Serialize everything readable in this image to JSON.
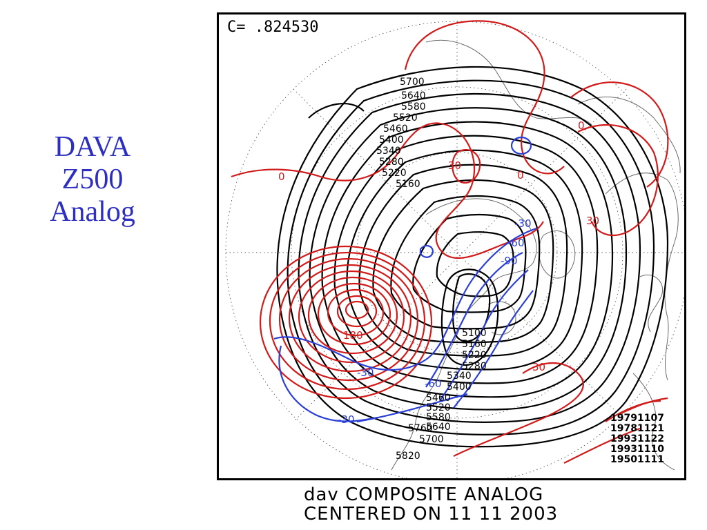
{
  "title": {
    "line1": "DAVA",
    "line2": "Z500",
    "line3": "Analog",
    "color": "#2d2fc0"
  },
  "map": {
    "correlation_label": "C= .824530",
    "height_contour_labels": [
      "5700",
      "5640",
      "5580",
      "5520",
      "5460",
      "5400",
      "5340",
      "5280",
      "5220",
      "5160",
      "5100",
      "5160",
      "5220",
      "5280",
      "5340",
      "5400",
      "5460",
      "5520",
      "5580",
      "5640",
      "5700",
      "5760",
      "5820"
    ],
    "anomaly_positive_labels": [
      "0",
      "0",
      "30",
      "0",
      "30",
      "180",
      "30"
    ],
    "anomaly_negative_labels": [
      "-30",
      "-60",
      "-90",
      "-30",
      "-60",
      "-30"
    ],
    "analog_dates": [
      "19791107",
      "19781121",
      "19931122",
      "19931110",
      "19501111"
    ],
    "colors": {
      "heights": "#000000",
      "positive": "#d11a1a",
      "negative": "#2a3fd6",
      "frame": "#000000"
    }
  },
  "caption": {
    "line1": "dav COMPOSITE ANALOG",
    "line2": "CENTERED ON 11 11 2003"
  }
}
